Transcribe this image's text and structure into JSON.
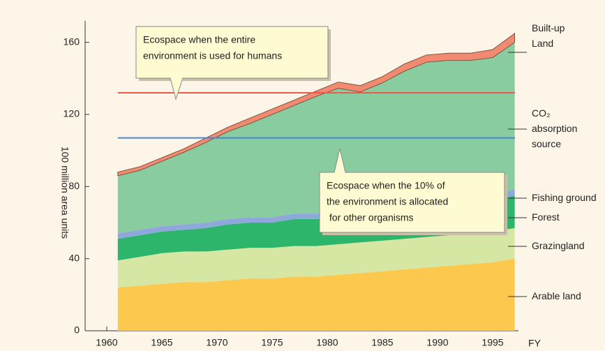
{
  "chart_data": {
    "type": "stacked_area",
    "y_label": "100 million area units",
    "x_label": "FY",
    "x": [
      1961,
      1963,
      1965,
      1967,
      1969,
      1971,
      1973,
      1975,
      1977,
      1979,
      1981,
      1983,
      1985,
      1987,
      1989,
      1991,
      1993,
      1995,
      1997
    ],
    "xlim": [
      1957,
      1998
    ],
    "xticks": [
      1960,
      1965,
      1970,
      1975,
      1980,
      1985,
      1990,
      1995
    ],
    "ylim": [
      0,
      168
    ],
    "yticks": [
      0,
      40,
      80,
      120,
      160
    ],
    "series": [
      {
        "name": "Arable land",
        "color": "#fcc84e",
        "values": [
          24,
          25,
          26,
          27,
          27,
          28,
          29,
          29,
          30,
          30,
          31,
          32,
          33,
          34,
          35,
          36,
          37,
          38,
          40
        ]
      },
      {
        "name": "Grazingland",
        "color": "#d5e7a2",
        "values": [
          15,
          16,
          17,
          17,
          17,
          17,
          17,
          17,
          17,
          17,
          17,
          17,
          17,
          17,
          17,
          17,
          17,
          17,
          17
        ]
      },
      {
        "name": "Forest",
        "color": "#2db56c",
        "values": [
          12,
          12,
          12,
          12,
          13,
          14,
          14,
          14,
          15,
          15,
          15,
          15,
          15,
          15,
          16,
          16,
          16,
          17,
          18
        ]
      },
      {
        "name": "Fishing ground",
        "color": "#8fa8dc",
        "values": [
          3,
          3,
          3,
          3,
          3,
          3,
          3,
          3,
          3,
          3,
          3,
          3,
          3,
          3,
          3,
          3,
          3,
          3,
          3.5
        ]
      },
      {
        "name": "CO₂\nabsorption\nsource",
        "color": "#88cc9f",
        "values": [
          32,
          33,
          36,
          40,
          44.5,
          48.5,
          52,
          57,
          60,
          65,
          68.5,
          65.5,
          69.5,
          75,
          78,
          78,
          77,
          76.5,
          81.5
        ]
      },
      {
        "name": "Built-up\nLand",
        "color": "#f08a70",
        "values": [
          2,
          2,
          2,
          2,
          2.5,
          2.5,
          3,
          3,
          3,
          3,
          3.5,
          3.5,
          3.5,
          4,
          4,
          4,
          4,
          4.5,
          5
        ]
      }
    ],
    "reference_lines": [
      {
        "value": 132,
        "color": "#f0584a",
        "text": [
          "Ecospace when the entire",
          "environment is used for humans"
        ]
      },
      {
        "value": 107,
        "color": "#4a86d0",
        "text": [
          "Ecospace when the 10% of",
          "the environment is allocated",
          " for other organisms"
        ]
      }
    ]
  }
}
